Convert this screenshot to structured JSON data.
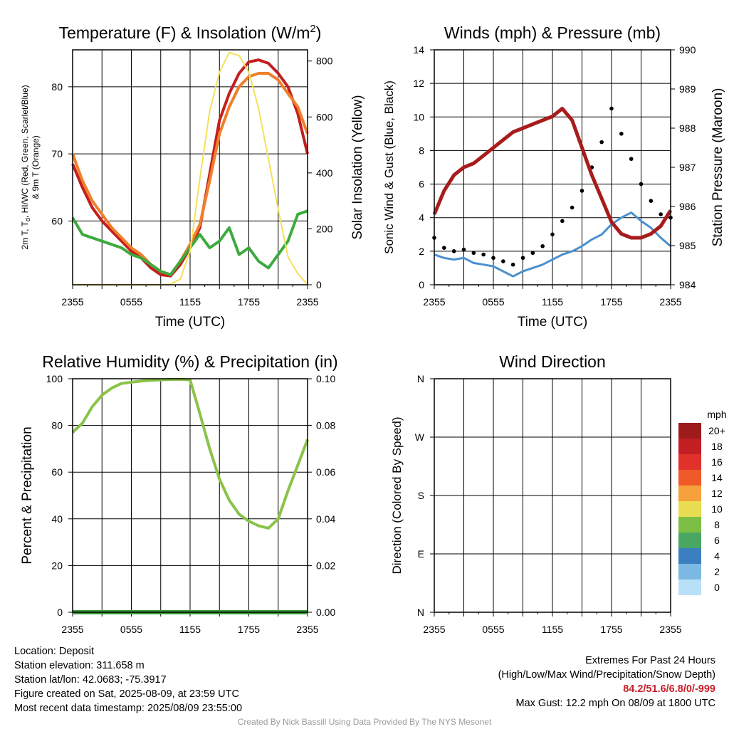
{
  "chart_data": [
    {
      "type": "line",
      "title": "Temperature (F) & Insolation (W/m",
      "title_superscript": "2",
      "title_suffix": ")",
      "xlabel": "Time (UTC)",
      "ylabel_line1": "2m T, T",
      "ylabel_sub": "d",
      "ylabel_line1_rest": ", HI/WC (Red, Green, Scarlet/Blue)",
      "ylabel_line2": "& 9m T (Orange)",
      "y2label": "Solar Insolation (Yellow)",
      "x_ticks": [
        "2355",
        "0555",
        "1155",
        "1755",
        "2355"
      ],
      "y_ticks": [
        "60",
        "70",
        "80"
      ],
      "y2_ticks": [
        "0",
        "200",
        "400",
        "600",
        "800"
      ],
      "ylim": [
        50.5,
        85.5
      ],
      "y2lim": [
        0,
        840
      ],
      "x_hours_since_2355": [
        0,
        1,
        2,
        3,
        4,
        5,
        6,
        7,
        8,
        9,
        10,
        11,
        12,
        13,
        14,
        15,
        16,
        17,
        18,
        19,
        20,
        21,
        22,
        23,
        24
      ],
      "series": [
        {
          "name": "2m T",
          "color": "#c41e1e",
          "values": [
            68.5,
            65,
            62,
            60,
            58.5,
            57,
            55.5,
            54.5,
            53,
            52,
            51.8,
            53.5,
            56,
            59,
            67,
            75,
            79,
            82,
            83.7,
            84,
            83.5,
            82,
            80,
            76,
            70
          ]
        },
        {
          "name": "9m T",
          "color": "#f07f2a",
          "values": [
            70,
            66,
            63,
            61,
            59,
            57.5,
            56,
            55,
            53.5,
            52.5,
            52,
            54,
            56.5,
            59.5,
            66,
            73,
            77,
            80,
            81.5,
            82,
            82,
            81,
            79,
            77,
            73
          ]
        },
        {
          "name": "Td",
          "color": "#3daa3d",
          "values": [
            60.5,
            58,
            57.5,
            57,
            56.5,
            56,
            55,
            54.5,
            53.5,
            52.5,
            52,
            54,
            56,
            58,
            56,
            57,
            59,
            55,
            56,
            54,
            53,
            55,
            57,
            61,
            61.5
          ]
        },
        {
          "name": "Solar Insolation",
          "color": "#f5e05a",
          "axis": "right",
          "values": [
            0,
            0,
            0,
            0,
            0,
            0,
            0,
            0,
            0,
            0,
            2,
            20,
            120,
            380,
            620,
            760,
            830,
            820,
            760,
            630,
            450,
            270,
            100,
            40,
            0
          ]
        }
      ]
    },
    {
      "type": "line",
      "title": "Winds (mph) & Pressure (mb)",
      "xlabel": "Time (UTC)",
      "ylabel": "Sonic Wind & Gust (Blue, Black)",
      "y2label": "Station Pressure (Maroon)",
      "x_ticks": [
        "2355",
        "0555",
        "1155",
        "1755",
        "2355"
      ],
      "y_ticks": [
        "0",
        "2",
        "4",
        "6",
        "8",
        "10",
        "12",
        "14"
      ],
      "y2_ticks": [
        "984",
        "985",
        "986",
        "987",
        "988",
        "989",
        "990"
      ],
      "ylim": [
        0,
        14
      ],
      "y2lim": [
        984,
        990
      ],
      "x_hours_since_2355": [
        0,
        1,
        2,
        3,
        4,
        5,
        6,
        7,
        8,
        9,
        10,
        11,
        12,
        13,
        14,
        15,
        16,
        17,
        18,
        19,
        20,
        21,
        22,
        23,
        24
      ],
      "series": [
        {
          "name": "Sonic Wind",
          "color": "#4a90cf",
          "values": [
            1.8,
            1.6,
            1.5,
            1.6,
            1.3,
            1.2,
            1.1,
            0.8,
            0.5,
            0.8,
            1.0,
            1.2,
            1.5,
            1.8,
            2.0,
            2.3,
            2.7,
            3.0,
            3.6,
            4.0,
            4.3,
            3.8,
            3.4,
            2.8,
            2.3
          ]
        },
        {
          "name": "Gust",
          "color": "#000000",
          "values": [
            2.8,
            2.2,
            2.0,
            2.1,
            1.9,
            1.8,
            1.6,
            1.4,
            1.2,
            1.6,
            1.9,
            2.3,
            3.0,
            3.8,
            4.6,
            5.6,
            7.0,
            8.5,
            10.5,
            9.0,
            7.5,
            6.0,
            5.0,
            4.2,
            4.0
          ]
        },
        {
          "name": "Station Pressure",
          "color": "#a81c1c",
          "axis": "right",
          "values": [
            985.8,
            986.4,
            986.8,
            987.0,
            987.1,
            987.3,
            987.5,
            987.7,
            987.9,
            988.0,
            988.1,
            988.2,
            988.3,
            988.5,
            988.2,
            987.5,
            986.8,
            986.2,
            985.6,
            985.3,
            985.2,
            985.2,
            985.3,
            985.5,
            985.9
          ]
        }
      ]
    },
    {
      "type": "line",
      "title": "Relative Humidity (%) & Precipitation (in)",
      "xlabel": "",
      "ylabel": "Percent & Precipitation",
      "x_ticks": [
        "2355",
        "0555",
        "1155",
        "1755",
        "2355"
      ],
      "y_ticks": [
        "0",
        "20",
        "40",
        "60",
        "80",
        "100"
      ],
      "y2_ticks": [
        "0.00",
        "0.02",
        "0.04",
        "0.06",
        "0.08",
        "0.10"
      ],
      "ylim": [
        0,
        100
      ],
      "y2lim": [
        0,
        0.1
      ],
      "x_hours_since_2355": [
        0,
        1,
        2,
        3,
        4,
        5,
        6,
        7,
        8,
        9,
        10,
        11,
        12,
        13,
        14,
        15,
        16,
        17,
        18,
        19,
        20,
        21,
        22,
        23,
        24
      ],
      "series": [
        {
          "name": "Relative Humidity",
          "color": "#8bc34a",
          "values": [
            77,
            81,
            88,
            93,
            96,
            98,
            98.5,
            99,
            99.3,
            99.5,
            99.7,
            99.8,
            99.5,
            85,
            70,
            57,
            48,
            42,
            39,
            37,
            36,
            40,
            52,
            63,
            74
          ]
        },
        {
          "name": "Precipitation",
          "color": "#3a9a3a",
          "axis": "right",
          "values": [
            0,
            0,
            0,
            0,
            0,
            0,
            0,
            0,
            0,
            0,
            0,
            0,
            0,
            0,
            0,
            0,
            0,
            0,
            0,
            0,
            0,
            0,
            0,
            0,
            0
          ]
        }
      ]
    },
    {
      "type": "scatter",
      "title": "Wind Direction",
      "xlabel": "",
      "ylabel": "Direction (Colored By Speed)",
      "x_ticks": [
        "2355",
        "0555",
        "1155",
        "1755",
        "2355"
      ],
      "y_ticks": [
        "N",
        "E",
        "S",
        "W",
        "N"
      ],
      "ylim": [
        0,
        360
      ],
      "legend_title": "mph",
      "legend_labels": [
        "20+",
        "18",
        "16",
        "14",
        "12",
        "10",
        "8",
        "6",
        "4",
        "2",
        "0"
      ],
      "legend_colors": [
        "#9e1b1b",
        "#c41e25",
        "#e0322b",
        "#f05a28",
        "#f7a13c",
        "#e8dc50",
        "#7dbf45",
        "#4aa763",
        "#3c7fc0",
        "#7cb8e4",
        "#b8e0f6"
      ],
      "legend_placement": "right"
    }
  ],
  "info_left": {
    "location": "Location: Deposit",
    "elevation": "Station elevation: 311.658 m",
    "latlon": "Station lat/lon: 42.0683; -75.3917",
    "created": "Figure created on Sat, 2025-08-09, at 23:59 UTC",
    "recent": "Most recent data timestamp: 2025/08/09 23:55:00"
  },
  "info_right": {
    "heading": "Extremes For Past 24 Hours",
    "legend": "(High/Low/Max Wind/Precipitation/Snow Depth)",
    "values": "84.2/51.6/6.8/0/-999",
    "gust": "Max Gust: 12.2 mph On 08/09 at 1800 UTC"
  },
  "footer": "Created By Nick Bassill Using Data Provided By The NYS Mesonet"
}
